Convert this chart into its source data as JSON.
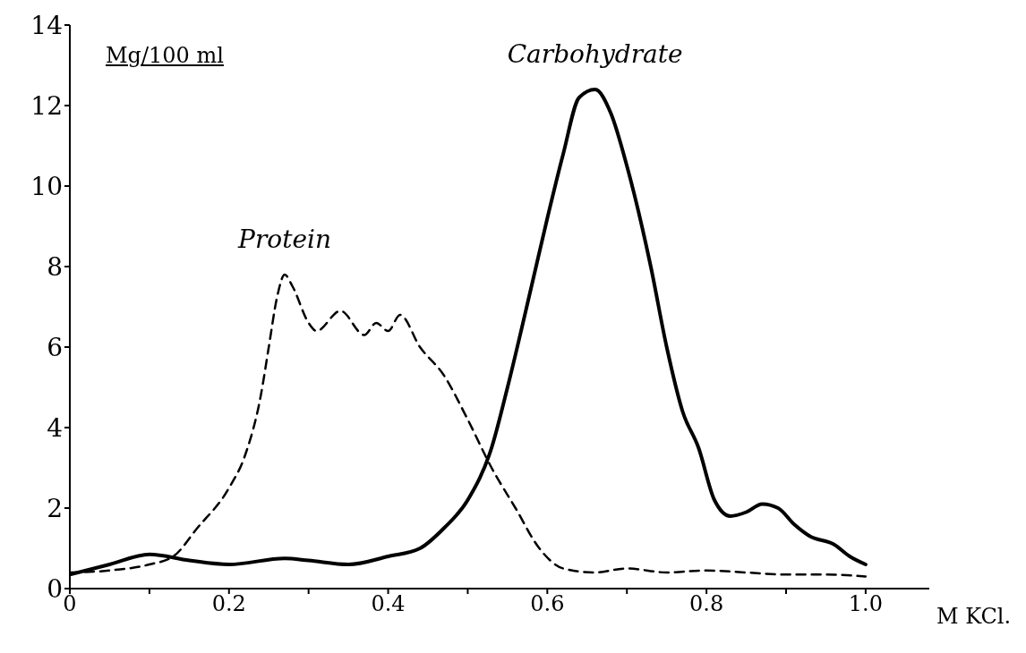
{
  "chart_data": {
    "type": "line",
    "ylabel": "Mg/100 ml",
    "xlabel": "M KCl.",
    "xlim": [
      0,
      1.08
    ],
    "ylim": [
      0,
      14
    ],
    "xticks": [
      {
        "value": 0,
        "label": "0"
      },
      {
        "value": 0.1,
        "label": null
      },
      0.2,
      {
        "value": 0.3,
        "label": null
      },
      0.4,
      {
        "value": 0.5,
        "label": null
      },
      0.6,
      {
        "value": 0.7,
        "label": null
      },
      0.8,
      {
        "value": 0.9,
        "label": null
      },
      {
        "value": 1.0,
        "label": "1.0"
      }
    ],
    "yticks": [
      0,
      2,
      4,
      6,
      8,
      10,
      12,
      14
    ],
    "marker": "none",
    "series": [
      {
        "name": "Protein",
        "color": "#000000",
        "line_style": "dashed",
        "x": [
          0,
          0.05,
          0.1,
          0.13,
          0.16,
          0.2,
          0.22,
          0.24,
          0.25,
          0.26,
          0.27,
          0.28,
          0.3,
          0.31,
          0.34,
          0.37,
          0.385,
          0.4,
          0.415,
          0.44,
          0.47,
          0.5,
          0.53,
          0.56,
          0.59,
          0.62,
          0.66,
          0.7,
          0.75,
          0.8,
          0.85,
          0.9,
          0.95,
          1.0
        ],
        "values": [
          0.4,
          0.45,
          0.6,
          0.8,
          1.5,
          2.5,
          3.3,
          4.8,
          6,
          7.2,
          7.8,
          7.5,
          6.6,
          6.4,
          6.9,
          6.3,
          6.6,
          6.4,
          6.8,
          6.0,
          5.3,
          4.2,
          3.0,
          2.0,
          1.0,
          0.5,
          0.4,
          0.5,
          0.4,
          0.45,
          0.4,
          0.35,
          0.35,
          0.3
        ]
      },
      {
        "name": "Carbohydrate",
        "color": "#000000",
        "line_style": "solid",
        "x": [
          0,
          0.05,
          0.1,
          0.15,
          0.2,
          0.27,
          0.3,
          0.35,
          0.4,
          0.44,
          0.47,
          0.5,
          0.53,
          0.55,
          0.58,
          0.6,
          0.62,
          0.64,
          0.66,
          0.68,
          0.7,
          0.73,
          0.75,
          0.77,
          0.79,
          0.81,
          0.83,
          0.85,
          0.87,
          0.89,
          0.91,
          0.93,
          0.96,
          0.98,
          1.0
        ],
        "values": [
          0.35,
          0.6,
          0.85,
          0.7,
          0.6,
          0.75,
          0.7,
          0.6,
          0.8,
          1.0,
          1.5,
          2.2,
          3.5,
          5,
          7.5,
          9.2,
          10.8,
          12.2,
          12.4,
          11.8,
          10.5,
          8,
          6,
          4.4,
          3.5,
          2.2,
          1.8,
          1.9,
          2.1,
          2.0,
          1.6,
          1.3,
          1.1,
          0.8,
          0.6
        ]
      }
    ]
  }
}
